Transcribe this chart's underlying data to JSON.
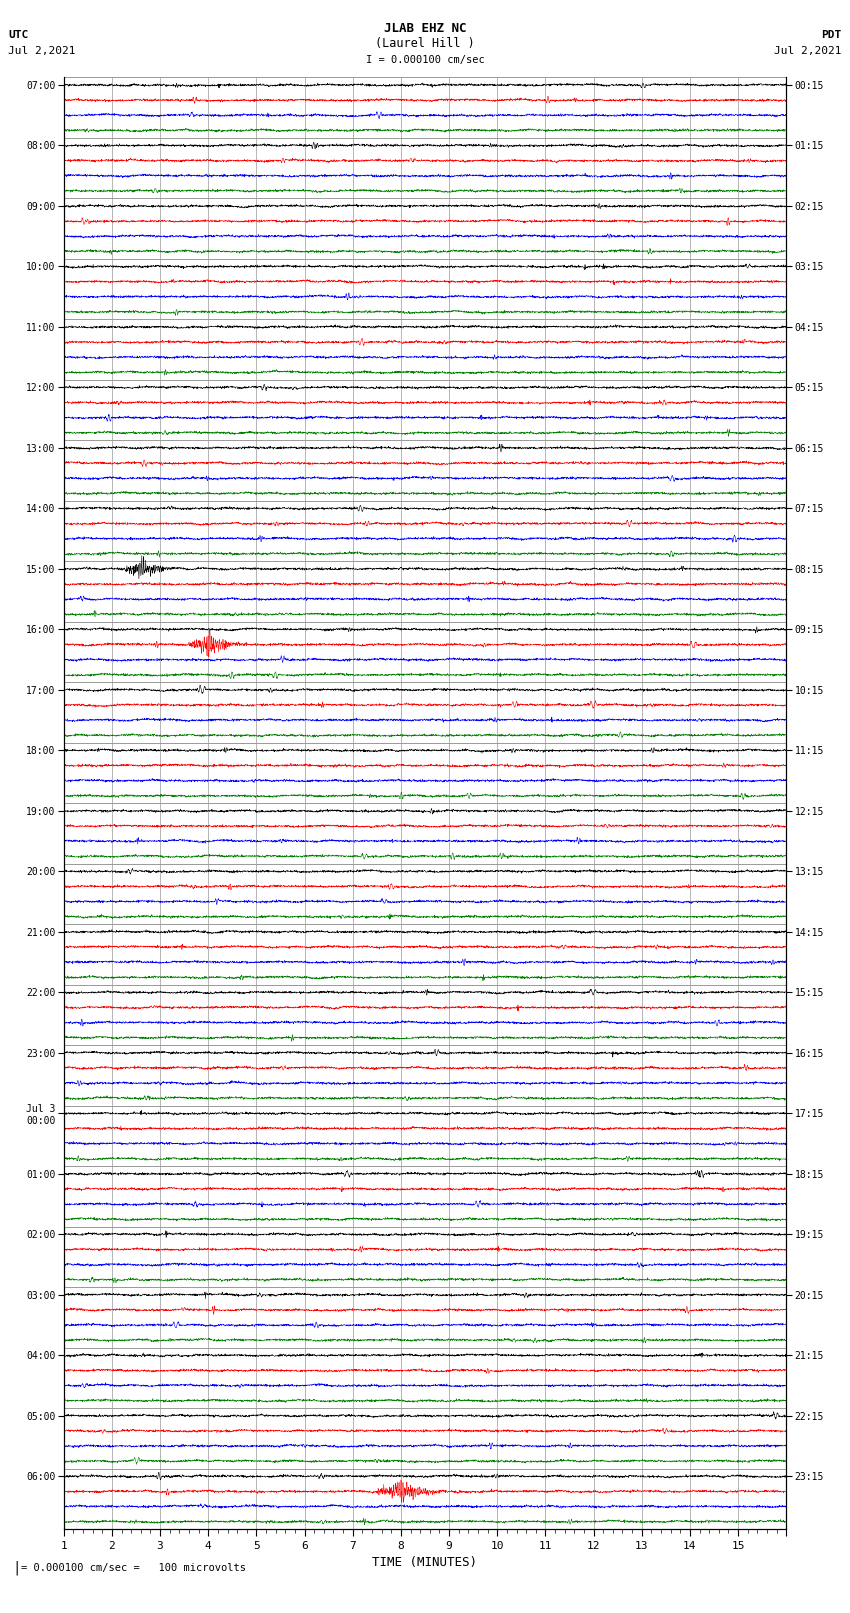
{
  "title_line1": "JLAB EHZ NC",
  "title_line2": "(Laurel Hill )",
  "scale_text": "I = 0.000100 cm/sec",
  "utc_left": "UTC",
  "date_left": "Jul 2,2021",
  "pdt_right": "PDT",
  "date_right": "Jul 2,2021",
  "footer_text": "= 0.000100 cm/sec =   100 microvolts",
  "xlabel": "TIME (MINUTES)",
  "utc_hour_labels": [
    "07:00",
    "08:00",
    "09:00",
    "10:00",
    "11:00",
    "12:00",
    "13:00",
    "14:00",
    "15:00",
    "16:00",
    "17:00",
    "18:00",
    "19:00",
    "20:00",
    "21:00",
    "22:00",
    "23:00",
    "Jul 3\n00:00",
    "01:00",
    "02:00",
    "03:00",
    "04:00",
    "05:00",
    "06:00"
  ],
  "pdt_hour_labels": [
    "00:15",
    "01:15",
    "02:15",
    "03:15",
    "04:15",
    "05:15",
    "06:15",
    "07:15",
    "08:15",
    "09:15",
    "10:15",
    "11:15",
    "12:15",
    "13:15",
    "14:15",
    "15:15",
    "16:15",
    "17:15",
    "18:15",
    "19:15",
    "20:15",
    "21:15",
    "22:15",
    "23:15"
  ],
  "num_hours": 24,
  "traces_per_hour": 4,
  "trace_colors": [
    "black",
    "red",
    "blue",
    "green"
  ],
  "bg_color": "#ffffff",
  "grid_color": "#999999",
  "time_minutes": 15,
  "fig_width": 8.5,
  "fig_height": 16.13,
  "noise_base": 0.12,
  "event1_row": 32,
  "event1_color": "blue",
  "event1_t": 1.6,
  "event1_amp": 0.55,
  "event2_row": 37,
  "event2_color": "green",
  "event2_t": 3.0,
  "event2_amp": 0.5,
  "event3_row": 93,
  "event3_color": "blue",
  "event3_t": 7.0,
  "event3_amp": 0.5
}
